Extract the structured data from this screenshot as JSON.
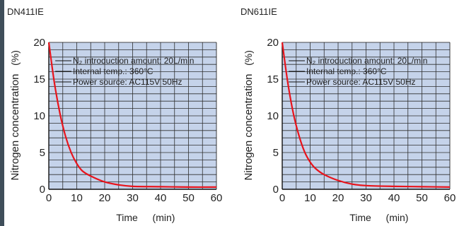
{
  "chart_data": [
    {
      "type": "line",
      "title": "DN411IE",
      "xlabel": "Time",
      "xunit": "(min)",
      "ylabel": "Nitrogen concentration",
      "yunit": "(%)",
      "xlim": [
        0,
        60
      ],
      "ylim": [
        0,
        20
      ],
      "xticks": [
        "0",
        "10",
        "20",
        "30",
        "40",
        "50",
        "60"
      ],
      "yticks": [
        "0",
        "5",
        "10",
        "15",
        "20"
      ],
      "grid": true,
      "annotations": [
        "N₂ introduction amount: 20L/min",
        "Internal temp.: 360°C",
        "Power source: AC115V 50Hz"
      ],
      "series": [
        {
          "color": "#e8141c",
          "x": [
            0,
            2,
            4,
            6,
            8,
            10,
            12,
            15,
            20,
            25,
            30,
            40,
            50,
            60
          ],
          "y": [
            20,
            14.5,
            10.3,
            7.2,
            5.0,
            3.5,
            2.5,
            1.8,
            1.0,
            0.6,
            0.4,
            0.35,
            0.3,
            0.3
          ]
        }
      ]
    },
    {
      "type": "line",
      "title": "DN611IE",
      "xlabel": "Time",
      "xunit": "(min)",
      "ylabel": "Nitrogen concentration",
      "yunit": "(%)",
      "xlim": [
        0,
        60
      ],
      "ylim": [
        0,
        20
      ],
      "xticks": [
        "0",
        "10",
        "20",
        "30",
        "40",
        "50",
        "60"
      ],
      "yticks": [
        "0",
        "5",
        "10",
        "15",
        "20"
      ],
      "grid": true,
      "annotations": [
        "N₂ introduction amount: 20L/min",
        "Internal temp.: 360°C",
        "Power source: AC115V 50Hz"
      ],
      "series": [
        {
          "color": "#e8141c",
          "x": [
            0,
            2,
            4,
            6,
            8,
            10,
            12,
            15,
            20,
            25,
            30,
            40,
            50,
            60
          ],
          "y": [
            20,
            14.5,
            10.3,
            7.3,
            5.1,
            3.7,
            2.8,
            2.0,
            1.2,
            0.7,
            0.5,
            0.4,
            0.35,
            0.3
          ]
        }
      ]
    }
  ],
  "colors": {
    "plot_bg": "#c5d3ea",
    "grid": "#2f2f2f",
    "axis": "#111111",
    "curve": "#e8141c",
    "edge_bar": "#3f4e5a"
  }
}
